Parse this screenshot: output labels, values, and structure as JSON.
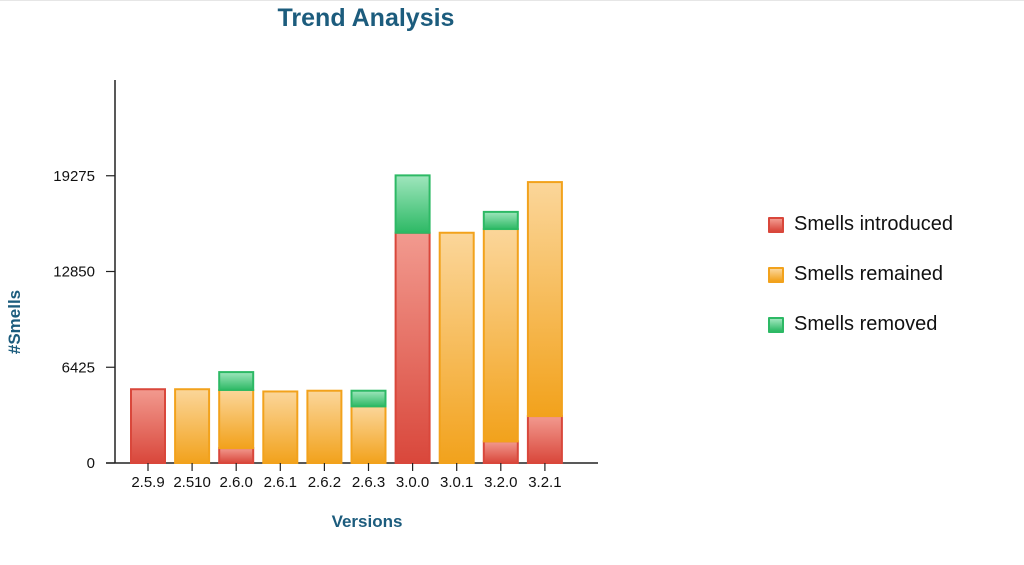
{
  "chart_data": {
    "type": "bar",
    "stacked": true,
    "title": "Trend Analysis",
    "xlabel": "Versions",
    "ylabel": "#Smells",
    "ylim": [
      0,
      25700
    ],
    "yticks": [
      0,
      6425,
      12850,
      19275
    ],
    "categories": [
      "2.5.9",
      "2.510",
      "2.6.0",
      "2.6.1",
      "2.6.2",
      "2.6.3",
      "3.0.0",
      "3.0.1",
      "3.2.0",
      "3.2.1"
    ],
    "series": [
      {
        "name": "Smells introduced",
        "values": [
          4950,
          0,
          1000,
          0,
          0,
          0,
          15450,
          0,
          1450,
          3150
        ],
        "color": "#d9473b",
        "gradient": "#f29a8f"
      },
      {
        "name": "Smells remained",
        "values": [
          0,
          4950,
          3900,
          4800,
          4850,
          3800,
          0,
          15450,
          14250,
          15700
        ],
        "color": "#f2a21c",
        "gradient": "#fbd69a"
      },
      {
        "name": "Smells removed",
        "values": [
          0,
          0,
          1200,
          0,
          0,
          1050,
          3850,
          0,
          1150,
          0
        ],
        "color": "#2db965",
        "gradient": "#9fe6bd"
      }
    ],
    "legend_position": "right",
    "grid": false
  }
}
